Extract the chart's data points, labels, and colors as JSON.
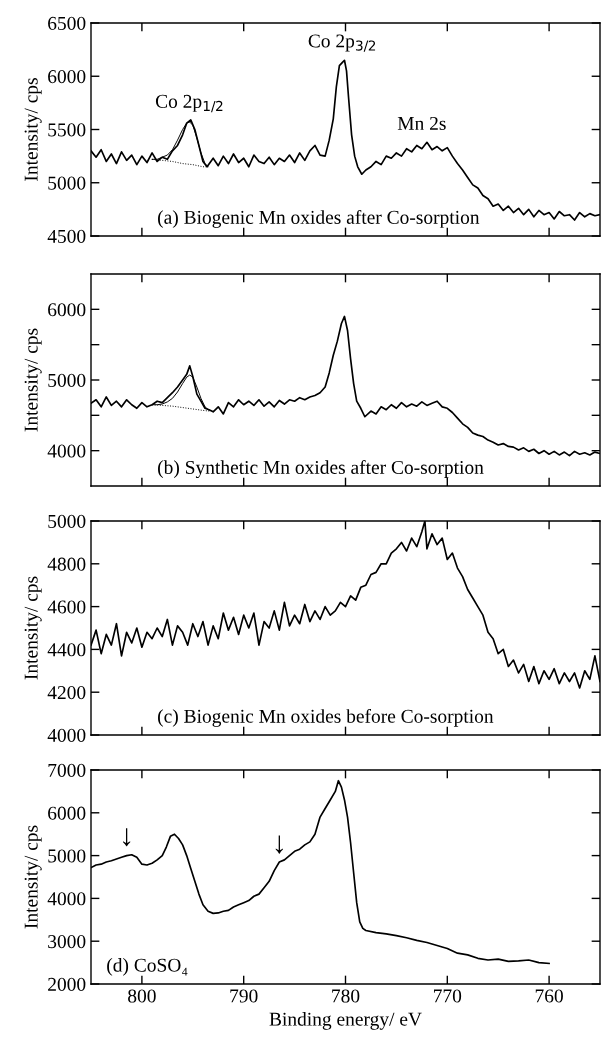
{
  "chart_data": [
    {
      "type": "line",
      "ylabel": "Intensity/ cps",
      "xlim": [
        805,
        755
      ],
      "xticks": [
        800,
        790,
        780,
        770,
        760
      ],
      "ylim": [
        4500,
        6500
      ],
      "yticks": [
        4500,
        5000,
        5500,
        6000,
        6500
      ],
      "tick_labels": "y",
      "grid": false,
      "annotations": [
        {
          "text": "Co 2p$_{1/2}$",
          "x": 795.3,
          "y": 5583
        },
        {
          "text": "Co 2p$_{3/2}$",
          "x": 780.3,
          "y": 6150
        },
        {
          "text": "Mn 2s",
          "x": 772.5,
          "y": 5380
        },
        "(a) Biogenic Mn oxides after Co-sorption"
      ],
      "series": [
        {
          "color": "#000000",
          "line_style": "solid",
          "x": [
            805,
            804.5,
            804,
            803.5,
            803,
            802.5,
            802,
            801.5,
            801,
            800.5,
            800,
            799.5,
            799,
            798.5,
            798,
            797.5,
            797,
            796.5,
            796,
            795.6,
            795.2,
            794.8,
            794.4,
            794,
            793.6,
            793,
            792.5,
            792,
            791.5,
            791,
            790.5,
            790,
            789.5,
            789,
            788.5,
            788,
            787.5,
            787,
            786.5,
            786,
            785.5,
            785,
            784.5,
            784,
            783.5,
            783,
            782.5,
            782,
            781.6,
            781.2,
            780.9,
            780.6,
            780.3,
            780.1,
            779.9,
            779.7,
            779.4,
            779.1,
            778.8,
            778.4,
            778,
            777.5,
            777,
            776.5,
            776,
            775.5,
            775,
            774.5,
            774,
            773.5,
            773,
            772.5,
            772,
            771.5,
            771,
            770.5,
            770,
            769.5,
            769,
            768.5,
            768,
            767.5,
            767,
            766.5,
            766,
            765.5,
            765,
            764.5,
            764,
            763.5,
            763,
            762.5,
            762,
            761.5,
            761,
            760.5,
            760,
            759.5,
            759,
            758.5,
            758,
            757.5,
            757,
            756.5,
            756,
            755.5,
            755
          ],
          "values": [
            5300,
            5240,
            5310,
            5200,
            5270,
            5180,
            5290,
            5210,
            5260,
            5170,
            5250,
            5190,
            5280,
            5200,
            5240,
            5220,
            5300,
            5350,
            5450,
            5560,
            5590,
            5500,
            5350,
            5200,
            5150,
            5230,
            5160,
            5250,
            5180,
            5270,
            5190,
            5230,
            5150,
            5260,
            5200,
            5180,
            5240,
            5170,
            5230,
            5200,
            5260,
            5190,
            5280,
            5210,
            5300,
            5350,
            5260,
            5250,
            5400,
            5600,
            5900,
            6100,
            6130,
            6150,
            6050,
            5800,
            5450,
            5250,
            5150,
            5080,
            5120,
            5150,
            5200,
            5170,
            5250,
            5230,
            5280,
            5250,
            5320,
            5290,
            5350,
            5320,
            5380,
            5310,
            5340,
            5300,
            5330,
            5250,
            5180,
            5120,
            5050,
            4980,
            4950,
            4880,
            4850,
            4780,
            4800,
            4740,
            4780,
            4720,
            4760,
            4700,
            4750,
            4680,
            4740,
            4700,
            4720,
            4660,
            4730,
            4690,
            4700,
            4650,
            4720,
            4680,
            4710,
            4690,
            4700
          ]
        },
        {
          "color": "#000000",
          "line_style": "solid",
          "x": [
            799,
            798.5,
            798,
            797.5,
            797,
            796.5,
            796,
            795.6,
            795.3,
            795,
            794.6,
            794.2,
            793.8,
            793.5
          ],
          "values": [
            5220,
            5220,
            5240,
            5260,
            5310,
            5400,
            5500,
            5560,
            5570,
            5540,
            5420,
            5280,
            5180,
            5150
          ]
        },
        {
          "color": "#000000",
          "line_style": "dotted",
          "x": [
            799,
            798,
            797,
            796,
            795,
            794,
            793.5
          ],
          "values": [
            5220,
            5210,
            5200,
            5180,
            5170,
            5150,
            5150
          ]
        }
      ]
    },
    {
      "type": "line",
      "ylabel": "Intensity/ cps",
      "xlim": [
        805,
        755
      ],
      "xticks": [
        800,
        790,
        780,
        770,
        760
      ],
      "ylim": [
        3500,
        6500
      ],
      "yticks": [
        4000,
        {
          "value": 4500,
          "label": null
        },
        5000,
        {
          "value": 5500,
          "label": null
        },
        6000
      ],
      "tick_labels": "y",
      "grid": false,
      "annotations": [
        "(b) Synthetic Mn oxides after Co-sorption"
      ],
      "series": [
        {
          "color": "#000000",
          "line_style": "solid",
          "x": [
            805,
            804.5,
            804,
            803.5,
            803,
            802.5,
            802,
            801.5,
            801,
            800.5,
            800,
            799.5,
            799,
            798.5,
            798,
            797.5,
            797,
            796.5,
            796,
            795.6,
            795.3,
            795,
            794.6,
            794.2,
            793.8,
            793.4,
            793,
            792.5,
            792,
            791.5,
            791,
            790.5,
            790,
            789.5,
            789,
            788.5,
            788,
            787.5,
            787,
            786.5,
            786,
            785.5,
            785,
            784.5,
            784,
            783.5,
            783,
            782.5,
            782,
            781.6,
            781.2,
            780.8,
            780.4,
            780.1,
            779.8,
            779.5,
            779.2,
            778.9,
            778.5,
            778.1,
            777.5,
            777,
            776.5,
            776,
            775.5,
            775,
            774.5,
            774,
            773.5,
            773,
            772.5,
            772,
            771.5,
            771,
            770.5,
            770,
            769.5,
            769,
            768.5,
            768,
            767.5,
            767,
            766.5,
            766,
            765.5,
            765,
            764.5,
            764,
            763.5,
            763,
            762.5,
            762,
            761.5,
            761,
            760.5,
            760,
            759.5,
            759,
            758.5,
            758,
            757.5,
            757,
            756.5,
            756,
            755.5,
            755
          ],
          "values": [
            4670,
            4720,
            4620,
            4760,
            4640,
            4700,
            4620,
            4720,
            4650,
            4600,
            4680,
            4620,
            4650,
            4700,
            4680,
            4750,
            4820,
            4900,
            5000,
            5080,
            5200,
            5050,
            4800,
            4700,
            4600,
            4580,
            4550,
            4620,
            4520,
            4680,
            4620,
            4720,
            4650,
            4700,
            4640,
            4720,
            4630,
            4690,
            4620,
            4710,
            4660,
            4720,
            4700,
            4750,
            4720,
            4760,
            4780,
            4820,
            4900,
            5100,
            5350,
            5550,
            5800,
            5900,
            5700,
            5300,
            4950,
            4700,
            4600,
            4480,
            4560,
            4520,
            4620,
            4580,
            4650,
            4600,
            4680,
            4620,
            4660,
            4630,
            4690,
            4640,
            4670,
            4700,
            4620,
            4600,
            4540,
            4460,
            4380,
            4330,
            4250,
            4220,
            4200,
            4150,
            4120,
            4080,
            4100,
            4060,
            4050,
            4010,
            4040,
            3990,
            4020,
            3960,
            4000,
            3950,
            3990,
            3940,
            3980,
            3930,
            3990,
            3950,
            3970,
            3940,
            3980,
            3960
          ]
        },
        {
          "color": "#000000",
          "line_style": "solid",
          "x": [
            799,
            798.5,
            798,
            797.5,
            797,
            796.5,
            796,
            795.6,
            795.3,
            795,
            794.6,
            794.2,
            793.8,
            793.4
          ],
          "values": [
            4650,
            4650,
            4660,
            4690,
            4740,
            4830,
            4950,
            5040,
            5070,
            5040,
            4900,
            4740,
            4620,
            4570
          ]
        },
        {
          "color": "#000000",
          "line_style": "dotted",
          "x": [
            799,
            798,
            797,
            796,
            795,
            794,
            793.4
          ],
          "values": [
            4650,
            4640,
            4630,
            4610,
            4590,
            4570,
            4560
          ]
        }
      ]
    },
    {
      "type": "line",
      "ylabel": "Intensity/ cps",
      "xlim": [
        805,
        755
      ],
      "xticks": [
        800,
        790,
        780,
        770,
        760
      ],
      "ylim": [
        4000,
        5000
      ],
      "yticks": [
        4000,
        4200,
        4400,
        4600,
        4800,
        5000
      ],
      "tick_labels": "y",
      "grid": false,
      "annotations": [
        "(c) Biogenic Mn oxides before Co-sorption"
      ],
      "series": [
        {
          "color": "#000000",
          "line_style": "solid",
          "x": [
            805,
            804.5,
            804,
            803.5,
            803,
            802.5,
            802,
            801.5,
            801,
            800.5,
            800,
            799.5,
            799,
            798.5,
            798,
            797.5,
            797,
            796.5,
            796,
            795.5,
            795,
            794.5,
            794,
            793.5,
            793,
            792.5,
            792,
            791.5,
            791,
            790.5,
            790,
            789.5,
            789,
            788.5,
            788,
            787.5,
            787,
            786.5,
            786,
            785.5,
            785,
            784.5,
            784,
            783.5,
            783,
            782.5,
            782,
            781.5,
            781,
            780.5,
            780,
            779.5,
            779,
            778.5,
            778,
            777.5,
            777,
            776.5,
            776,
            775.5,
            775,
            774.5,
            774,
            773.5,
            773,
            772.5,
            772.2,
            772,
            771.5,
            771,
            770.5,
            770,
            769.5,
            769,
            768.5,
            768,
            767.5,
            767,
            766.5,
            766,
            765.5,
            765,
            764.5,
            764,
            763.5,
            763,
            762.5,
            762,
            761.5,
            761,
            760.5,
            760,
            759.5,
            759,
            758.5,
            758,
            757.5,
            757,
            756.5,
            756,
            755.5,
            755
          ],
          "values": [
            4420,
            4490,
            4380,
            4470,
            4420,
            4520,
            4370,
            4480,
            4430,
            4500,
            4410,
            4480,
            4450,
            4500,
            4460,
            4540,
            4420,
            4510,
            4480,
            4420,
            4520,
            4460,
            4530,
            4420,
            4510,
            4450,
            4570,
            4490,
            4550,
            4470,
            4560,
            4500,
            4570,
            4420,
            4530,
            4500,
            4580,
            4490,
            4620,
            4510,
            4560,
            4520,
            4610,
            4530,
            4580,
            4540,
            4600,
            4560,
            4580,
            4620,
            4600,
            4650,
            4630,
            4690,
            4700,
            4750,
            4760,
            4800,
            4800,
            4850,
            4870,
            4900,
            4860,
            4920,
            4880,
            4950,
            5000,
            4870,
            4940,
            4890,
            4920,
            4820,
            4850,
            4780,
            4740,
            4680,
            4640,
            4600,
            4560,
            4480,
            4450,
            4380,
            4400,
            4320,
            4350,
            4290,
            4330,
            4250,
            4320,
            4240,
            4300,
            4260,
            4310,
            4240,
            4290,
            4250,
            4290,
            4220,
            4300,
            4260,
            4370,
            4250
          ]
        }
      ]
    },
    {
      "type": "line",
      "xlabel": "Binding energy/ eV",
      "ylabel": "Intensity/ cps",
      "xlim": [
        805,
        755
      ],
      "xticks": [
        800,
        790,
        780,
        770,
        760
      ],
      "ylim": [
        2000,
        7000
      ],
      "yticks": [
        2000,
        3000,
        4000,
        5000,
        6000,
        7000
      ],
      "grid": false,
      "annotations": [
        {
          "text": "↓",
          "x": 801.5,
          "y": 5020
        },
        {
          "text": "↓",
          "x": 786.5,
          "y": 4850
        },
        "(d) CoSO₄"
      ],
      "series": [
        {
          "color": "#000000",
          "line_style": "solid",
          "x": [
            805,
            804.5,
            804,
            803.5,
            803,
            802.5,
            802,
            801.5,
            801,
            800.5,
            800,
            799.5,
            799,
            798.5,
            798,
            797.6,
            797.2,
            796.8,
            796.4,
            796,
            795.6,
            795.2,
            794.8,
            794.4,
            794,
            793.5,
            793,
            792.5,
            792,
            791.5,
            791,
            790.5,
            790,
            789.5,
            789,
            788.5,
            788,
            787.5,
            787,
            786.5,
            786,
            785.5,
            785,
            784.5,
            784,
            783.5,
            783,
            782.5,
            782,
            781.5,
            781,
            780.7,
            780.4,
            780.1,
            779.8,
            779.5,
            779.2,
            778.9,
            778.6,
            778.3,
            778,
            777,
            776,
            775,
            774,
            773,
            772,
            771,
            770,
            769,
            768,
            767,
            766,
            765,
            764,
            763,
            762,
            761,
            760
          ],
          "values": [
            4720,
            4780,
            4800,
            4850,
            4880,
            4920,
            4960,
            5000,
            5020,
            4960,
            4800,
            4780,
            4820,
            4900,
            5000,
            5200,
            5450,
            5500,
            5400,
            5250,
            5000,
            4700,
            4400,
            4100,
            3850,
            3700,
            3650,
            3660,
            3700,
            3720,
            3800,
            3850,
            3900,
            3950,
            4050,
            4100,
            4250,
            4400,
            4650,
            4850,
            4900,
            5000,
            5100,
            5150,
            5250,
            5320,
            5500,
            5900,
            6100,
            6300,
            6500,
            6750,
            6600,
            6300,
            5900,
            5300,
            4600,
            3900,
            3450,
            3300,
            3250,
            3200,
            3170,
            3130,
            3080,
            3020,
            2970,
            2900,
            2830,
            2720,
            2680,
            2600,
            2560,
            2580,
            2530,
            2540,
            2560,
            2500,
            2480
          ]
        }
      ]
    }
  ]
}
